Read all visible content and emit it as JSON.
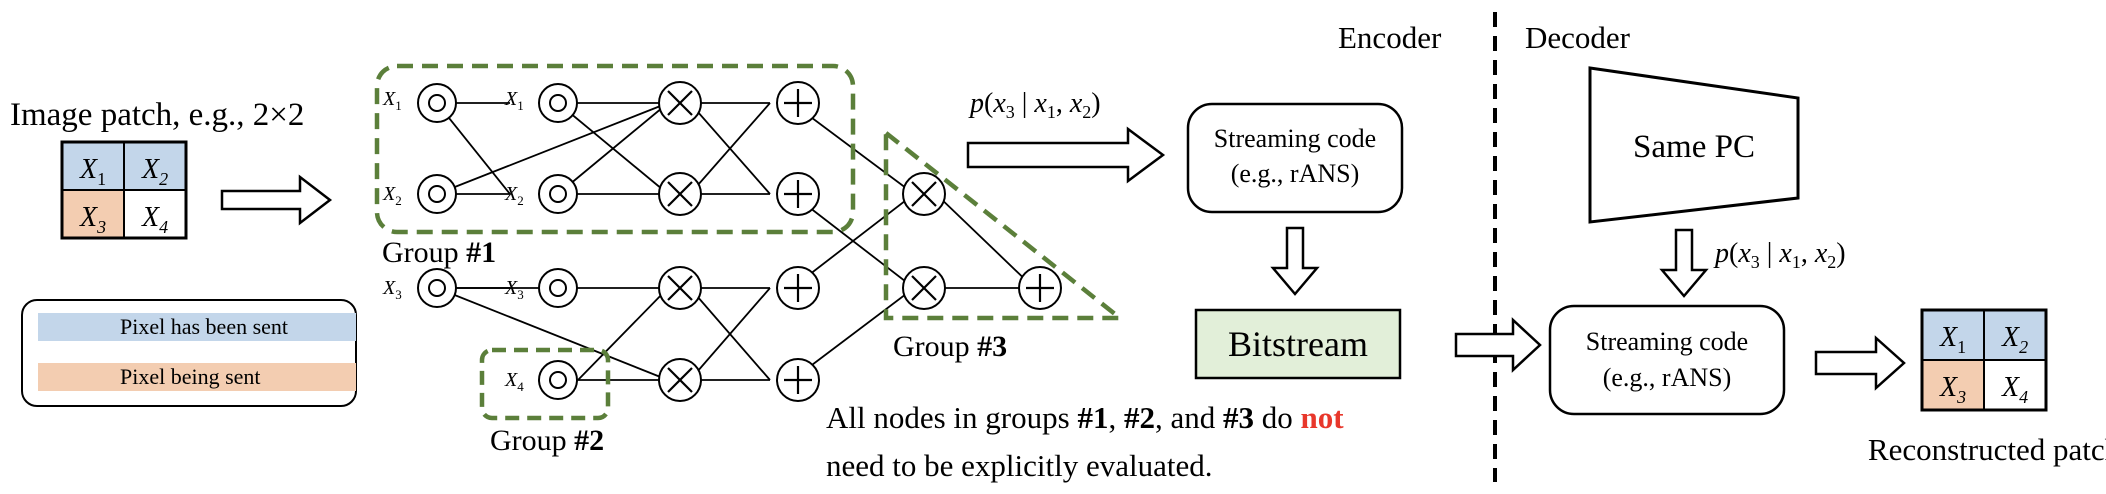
{
  "colors": {
    "sent": "#c3d6ea",
    "being_sent": "#f3cdb1",
    "bitstream_fill": "#e2efd9",
    "group_dash": "#5b7f3a",
    "highlight": "#e8372b"
  },
  "input": {
    "title": "Image patch, e.g., 2×2",
    "cells": [
      {
        "var": "X",
        "sub": "1",
        "state": "sent"
      },
      {
        "var": "X",
        "sub": "2",
        "state": "sent"
      },
      {
        "var": "X",
        "sub": "3",
        "state": "being_sent"
      },
      {
        "var": "X",
        "sub": "4",
        "state": "none"
      }
    ]
  },
  "legend": {
    "items": [
      {
        "label": "Pixel has been sent",
        "color": "#c3d6ea"
      },
      {
        "label": "Pixel being sent",
        "color": "#f3cdb1"
      }
    ]
  },
  "circuit": {
    "leaf_labels": [
      {
        "var": "X",
        "sub": "1"
      },
      {
        "var": "X",
        "sub": "1"
      },
      {
        "var": "X",
        "sub": "2"
      },
      {
        "var": "X",
        "sub": "2"
      },
      {
        "var": "X",
        "sub": "3"
      },
      {
        "var": "X",
        "sub": "3"
      },
      {
        "var": "X",
        "sub": "4"
      }
    ],
    "groups": [
      {
        "prefix": "Group ",
        "num": "#1"
      },
      {
        "prefix": "Group ",
        "num": "#2"
      },
      {
        "prefix": "Group ",
        "num": "#3"
      }
    ],
    "symbols": {
      "leaf": "○",
      "product": "×",
      "sum": "+"
    }
  },
  "encoder": {
    "section_label": "Encoder",
    "prob": {
      "p": "p",
      "open": "(",
      "x3": "x",
      "x3_sub": "3",
      "bar": " | ",
      "x1": "x",
      "x1_sub": "1",
      "comma": ", ",
      "x2": "x",
      "x2_sub": "2",
      "close": ")"
    },
    "streaming_line1": "Streaming code",
    "streaming_line2": "(e.g., rANS)",
    "bitstream": "Bitstream"
  },
  "note": {
    "line1_a": "All nodes in groups ",
    "g1": "#1",
    "sep1": ", ",
    "g2": "#2",
    "sep2": ", and ",
    "g3": "#3",
    "mid": " do ",
    "not": "not",
    "line2": "need to be explicitly evaluated."
  },
  "decoder": {
    "section_label": "Decoder",
    "same_pc": "Same PC",
    "prob": {
      "p": "p",
      "open": "(",
      "x3": "x",
      "x3_sub": "3",
      "bar": " | ",
      "x1": "x",
      "x1_sub": "1",
      "comma": ", ",
      "x2": "x",
      "x2_sub": "2",
      "close": ")"
    },
    "streaming_line1": "Streaming code",
    "streaming_line2": "(e.g., rANS)",
    "output_label": "Reconstructed patch",
    "cells": [
      {
        "var": "X",
        "sub": "1",
        "state": "sent"
      },
      {
        "var": "X",
        "sub": "2",
        "state": "sent"
      },
      {
        "var": "X",
        "sub": "3",
        "state": "being_sent"
      },
      {
        "var": "X",
        "sub": "4",
        "state": "none"
      }
    ]
  }
}
